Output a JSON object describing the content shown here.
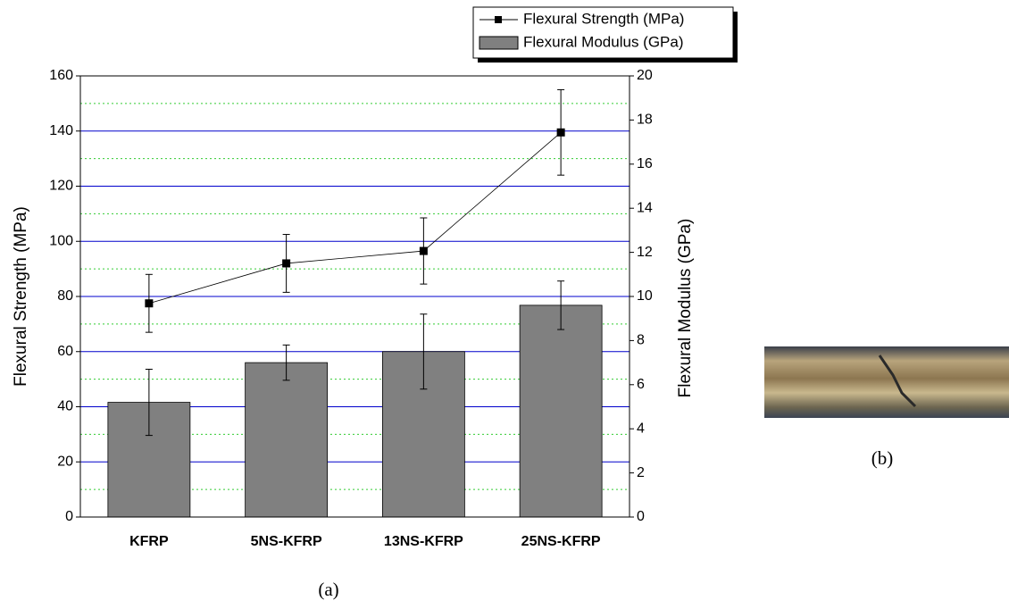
{
  "chart_data": {
    "type": "bar-line",
    "categories": [
      "KFRP",
      "5NS-KFRP",
      "13NS-KFRP",
      "25NS-KFRP"
    ],
    "series": [
      {
        "name": "Flexural Strength (MPa)",
        "type": "line",
        "axis": "y",
        "color": "#000000",
        "values": [
          77.5,
          92,
          96.5,
          139.5
        ],
        "errors": [
          10.5,
          10.5,
          12,
          15.5
        ]
      },
      {
        "name": "Flexural Modulus (GPa)",
        "type": "bar",
        "axis": "y2",
        "color": "#808080",
        "values": [
          5.2,
          7.0,
          7.5,
          9.6
        ],
        "errors": [
          1.5,
          0.8,
          1.7,
          1.1
        ]
      }
    ],
    "ylabel": "Flexural Strength (MPa)",
    "y2label": "Flexural Modulus (GPa)",
    "ylim": [
      0,
      160
    ],
    "yticks": [
      0,
      20,
      40,
      60,
      80,
      100,
      120,
      140,
      160
    ],
    "y2lim": [
      0,
      20
    ],
    "y2ticks": [
      0,
      2,
      4,
      6,
      8,
      10,
      12,
      14,
      16,
      18,
      20
    ],
    "grid": true,
    "grid_color": "#0000cc",
    "minor_grid": [
      10,
      30,
      50,
      70,
      90,
      110,
      130,
      150
    ],
    "minor_grid_color": "#33cc33",
    "legend": "top-right"
  },
  "panel_labels": [
    "(a)",
    "(b)"
  ]
}
